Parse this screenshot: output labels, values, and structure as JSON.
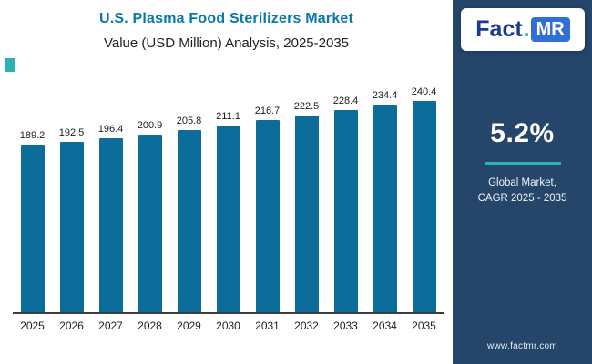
{
  "header": {
    "title": "U.S. Plasma Food Sterilizers Market",
    "subtitle": "Value (USD Million) Analysis, 2025-2035"
  },
  "logo": {
    "part1": "Fact",
    "dot": ".",
    "part2": "MR"
  },
  "sidebar": {
    "stat_value": "5.2%",
    "stat_label_line1": "Global Market,",
    "stat_label_line2": "CAGR 2025 - 2035",
    "url": "www.factmr.com",
    "bg_color": "#25456b",
    "accent_color": "#2bb3b1"
  },
  "chart_data": {
    "type": "bar",
    "title": "U.S. Plasma Food Sterilizers Market Value (USD Million) Analysis, 2025-2035",
    "categories": [
      "2025",
      "2026",
      "2027",
      "2028",
      "2029",
      "2030",
      "2031",
      "2032",
      "2033",
      "2034",
      "2035"
    ],
    "values": [
      189.2,
      192.5,
      196.4,
      200.9,
      205.8,
      211.1,
      216.7,
      222.5,
      228.4,
      234.4,
      240.4
    ],
    "xlabel": "",
    "ylabel": "Value (USD Million)",
    "ylim": [
      0,
      255
    ],
    "grid": false,
    "legend": "none",
    "bar_color": "#0d6d9a"
  }
}
